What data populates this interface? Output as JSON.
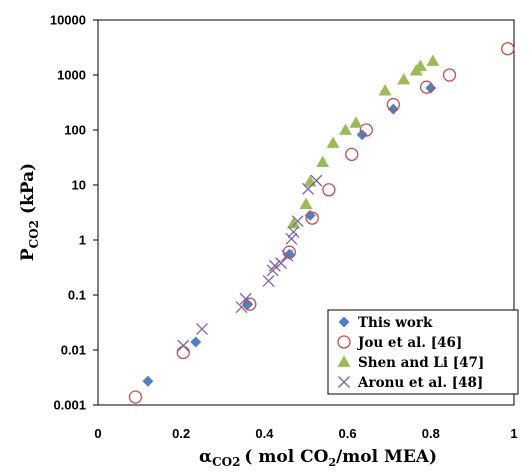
{
  "chart_data": {
    "type": "scatter",
    "title": "",
    "xlabel": {
      "alpha": "α",
      "alpha_sub": "CO2",
      "paren_open": "( mol CO",
      "co2_sub": "2",
      "rest": "/mol  MEA)"
    },
    "ylabel": {
      "main": "P",
      "sub": "CO2",
      "unit": " (kPa)"
    },
    "xlim": [
      0,
      1
    ],
    "ylim": [
      0.001,
      10000
    ],
    "yscale": "log",
    "x_ticks": [
      0,
      0.2,
      0.4,
      0.6,
      0.8,
      1
    ],
    "x_tick_labels": [
      "0",
      "0.2",
      "0.4",
      "0.6",
      "0.8",
      "1"
    ],
    "y_ticks": [
      0.001,
      0.01,
      0.1,
      1,
      10,
      100,
      1000,
      10000
    ],
    "y_tick_labels": [
      "0.001",
      "0.01",
      "0.1",
      "1",
      "10",
      "100",
      "1000",
      "10000"
    ],
    "grid": false,
    "legend_position": "bottom-right",
    "series": [
      {
        "name": "This work",
        "marker": "diamond",
        "color": "#4F81BD",
        "points": [
          [
            0.12,
            0.0027
          ],
          [
            0.235,
            0.014
          ],
          [
            0.36,
            0.068
          ],
          [
            0.46,
            0.55
          ],
          [
            0.51,
            2.8
          ],
          [
            0.635,
            82
          ],
          [
            0.71,
            240
          ],
          [
            0.8,
            580
          ]
        ]
      },
      {
        "name": "Jou et al. [46]",
        "marker": "circle",
        "color": "#C0504D",
        "points": [
          [
            0.09,
            0.0014
          ],
          [
            0.205,
            0.009
          ],
          [
            0.365,
            0.068
          ],
          [
            0.46,
            0.6
          ],
          [
            0.515,
            2.5
          ],
          [
            0.555,
            8.2
          ],
          [
            0.61,
            36
          ],
          [
            0.645,
            100
          ],
          [
            0.71,
            290
          ],
          [
            0.79,
            600
          ],
          [
            0.845,
            1000
          ],
          [
            0.985,
            3000
          ]
        ]
      },
      {
        "name": "Shen and Li [47]",
        "marker": "triangle",
        "color": "#9BBB59",
        "points": [
          [
            0.47,
            2.0
          ],
          [
            0.5,
            4.5
          ],
          [
            0.51,
            11.5
          ],
          [
            0.54,
            26
          ],
          [
            0.565,
            58
          ],
          [
            0.595,
            100
          ],
          [
            0.62,
            135
          ],
          [
            0.69,
            520
          ],
          [
            0.735,
            830
          ],
          [
            0.765,
            1200
          ],
          [
            0.775,
            1450
          ],
          [
            0.805,
            1800
          ]
        ]
      },
      {
        "name": "Aronu et al. [48]",
        "marker": "x",
        "color": "#8064A2",
        "points": [
          [
            0.205,
            0.012
          ],
          [
            0.25,
            0.024
          ],
          [
            0.345,
            0.06
          ],
          [
            0.355,
            0.085
          ],
          [
            0.41,
            0.18
          ],
          [
            0.42,
            0.28
          ],
          [
            0.425,
            0.34
          ],
          [
            0.44,
            0.38
          ],
          [
            0.455,
            0.52
          ],
          [
            0.465,
            1.05
          ],
          [
            0.47,
            1.4
          ],
          [
            0.48,
            2.2
          ],
          [
            0.505,
            8.5
          ],
          [
            0.525,
            12
          ]
        ]
      }
    ]
  }
}
